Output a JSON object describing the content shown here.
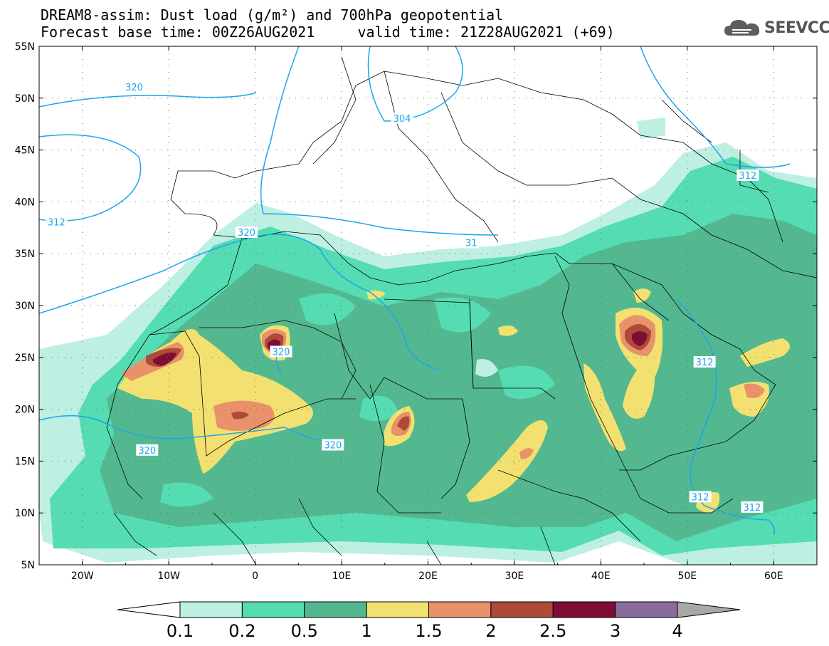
{
  "title": {
    "line1": "DREAM8-assim: Dust load (g/m²) and 700hPa geopotential",
    "line2": "Forecast base time: 00Z26AUG2021     valid time: 21Z28AUG2021 (+69)"
  },
  "logo": {
    "text": "SEEVCCC",
    "icon": "cloud-icon"
  },
  "axes": {
    "lat_labels": [
      "55N",
      "50N",
      "45N",
      "40N",
      "35N",
      "30N",
      "25N",
      "20N",
      "15N",
      "10N",
      "5N"
    ],
    "lon_labels": [
      "20W",
      "10W",
      "0",
      "10E",
      "20E",
      "30E",
      "40E",
      "50E",
      "60E"
    ],
    "lat_range": [
      5,
      55
    ],
    "lon_range": [
      -25,
      65
    ]
  },
  "contour_labels": [
    {
      "text": "320",
      "lon": -14,
      "lat": 51
    },
    {
      "text": "304",
      "lon": 17,
      "lat": 48
    },
    {
      "text": "312",
      "lon": -23,
      "lat": 38
    },
    {
      "text": "320",
      "lon": -1,
      "lat": 37
    },
    {
      "text": "31",
      "lon": 25,
      "lat": 36
    },
    {
      "text": "320",
      "lon": 3,
      "lat": 25.5
    },
    {
      "text": "320",
      "lon": -12.5,
      "lat": 16
    },
    {
      "text": "320",
      "lon": 9,
      "lat": 16.5
    },
    {
      "text": "312",
      "lon": 57,
      "lat": 42.5
    },
    {
      "text": "312",
      "lon": 52,
      "lat": 24.5
    },
    {
      "text": "312",
      "lon": 51.5,
      "lat": 11.5
    },
    {
      "text": "312",
      "lon": 57.5,
      "lat": 10.5
    }
  ],
  "colorbar": {
    "labels": [
      "0.1",
      "0.2",
      "0.5",
      "1",
      "1.5",
      "2",
      "2.5",
      "3",
      "4"
    ],
    "colors": [
      "#ffffff",
      "#bdefe3",
      "#55dcb2",
      "#53b890",
      "#f2e170",
      "#e9916a",
      "#ad4a38",
      "#7e0d34",
      "#876c9c",
      "#a8a8a8"
    ]
  },
  "colors": {
    "contour": "#1ba6ec",
    "border": "#000000"
  }
}
